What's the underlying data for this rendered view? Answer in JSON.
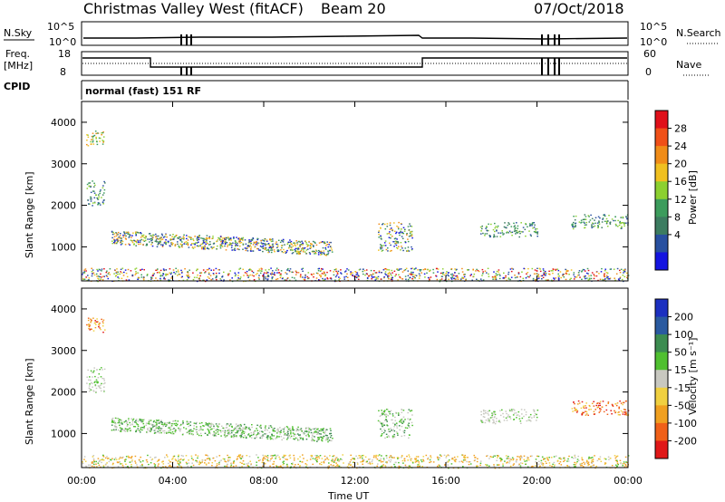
{
  "header": {
    "station": "Christmas Valley West (fitACF)",
    "beam": "Beam 20",
    "date": "07/Oct/2018"
  },
  "top_panels": {
    "nsky_label": "N.Sky",
    "nsearch_label": "N.Search",
    "freq_label_line1": "Freq.",
    "freq_label_line2": "[MHz]",
    "nave_label": "Nave",
    "cpid_label": "CPID",
    "cpid_text": "normal (fast) 151 RF",
    "noise_left_ticks": [
      "10^5",
      "10^0"
    ],
    "noise_right_ticks": [
      "10^5",
      "10^0"
    ],
    "freq_left_ticks": [
      "18",
      "8"
    ],
    "freq_right_ticks": [
      "60",
      "0"
    ]
  },
  "colorbars": {
    "power": {
      "label": "Power [dB]",
      "ticks": [
        "28",
        "24",
        "20",
        "16",
        "12",
        "8",
        "4"
      ],
      "colors": [
        "#e0101a",
        "#f05018",
        "#f08c18",
        "#f0c020",
        "#8cd030",
        "#3c9c5c",
        "#3c7c60",
        "#2850a0",
        "#1414e0"
      ]
    },
    "velocity": {
      "label": "Velocity [m s⁻¹]",
      "ticks": [
        "200",
        "100",
        "50",
        "15",
        "-15",
        "-50",
        "-100",
        "-200"
      ],
      "colors": [
        "#1c30c0",
        "#2a5aa0",
        "#3c8c50",
        "#50c030",
        "#c8c8c0",
        "#f0d040",
        "#f0a020",
        "#f06018",
        "#e01818"
      ]
    }
  },
  "chart_data": [
    {
      "type": "heatmap",
      "name": "power",
      "ylabel": "Slant Range [km]",
      "xlim": [
        "00:00",
        "24:00"
      ],
      "ylim": [
        180,
        4500
      ],
      "xticks": [
        "00:00",
        "04:00",
        "08:00",
        "12:00",
        "16:00",
        "20:00",
        "00:00"
      ],
      "yticks": [
        1000,
        2000,
        3000,
        4000
      ],
      "patches": [
        {
          "t0": 0.2,
          "t1": 1.0,
          "r0": 3450,
          "r1": 3800,
          "level": "high"
        },
        {
          "t0": 0.2,
          "t1": 1.0,
          "r0": 2000,
          "r1": 2600,
          "level": "mid"
        },
        {
          "t0": 1.3,
          "t1": 11.0,
          "r0": 800,
          "r1": 1400,
          "level": "mixed"
        },
        {
          "t0": 13.0,
          "t1": 14.5,
          "r0": 900,
          "r1": 1600,
          "level": "mixed"
        },
        {
          "t0": 17.5,
          "t1": 20.0,
          "r0": 1250,
          "r1": 1600,
          "level": "mid"
        },
        {
          "t0": 21.5,
          "t1": 24.0,
          "r0": 1450,
          "r1": 1800,
          "level": "mid"
        },
        {
          "t0": 0.0,
          "t1": 24.0,
          "r0": 180,
          "r1": 500,
          "level": "ground"
        }
      ]
    },
    {
      "type": "heatmap",
      "name": "velocity",
      "ylabel": "Slant Range [km]",
      "xlabel": "Time UT",
      "xlim": [
        "00:00",
        "24:00"
      ],
      "ylim": [
        180,
        4500
      ],
      "xticks": [
        "00:00",
        "04:00",
        "08:00",
        "12:00",
        "16:00",
        "20:00",
        "00:00"
      ],
      "yticks": [
        1000,
        2000,
        3000,
        4000
      ],
      "patches": [
        {
          "t0": 0.2,
          "t1": 1.0,
          "r0": 3450,
          "r1": 3800,
          "level": "neg"
        },
        {
          "t0": 0.2,
          "t1": 1.0,
          "r0": 2000,
          "r1": 2600,
          "level": "zero"
        },
        {
          "t0": 1.3,
          "t1": 11.0,
          "r0": 800,
          "r1": 1400,
          "level": "pos"
        },
        {
          "t0": 13.0,
          "t1": 14.5,
          "r0": 900,
          "r1": 1600,
          "level": "pos"
        },
        {
          "t0": 17.5,
          "t1": 20.0,
          "r0": 1250,
          "r1": 1600,
          "level": "zero"
        },
        {
          "t0": 21.5,
          "t1": 24.0,
          "r0": 1450,
          "r1": 1800,
          "level": "neg"
        },
        {
          "t0": 0.0,
          "t1": 24.0,
          "r0": 180,
          "r1": 500,
          "level": "ground"
        }
      ]
    }
  ]
}
